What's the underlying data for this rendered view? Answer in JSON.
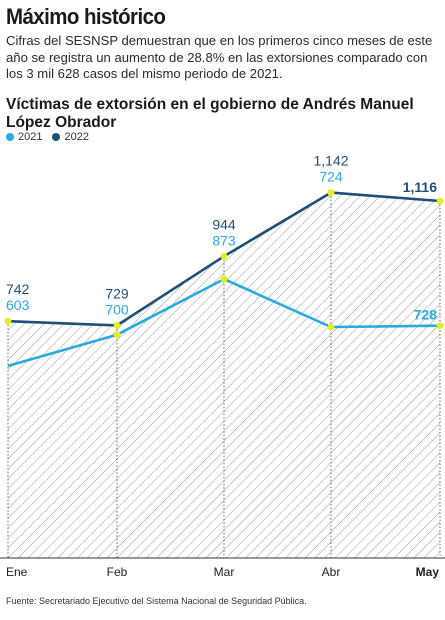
{
  "headline": "Máximo histórico",
  "lead": "Cifras del SESNSP demuestran que en los primeros cinco meses de este año se registra un aumento de 28.8% en las extorsiones comparado con los 3 mil 628 casos del mismo periodo de 2021.",
  "source": "Fuente: Secretariado Ejecutivo del Sistema Nacional de Seguridad Pública.",
  "colors": {
    "series_2021": "#29ABE2",
    "series_2022": "#1F4E79",
    "marker": "#E5F019",
    "area_hatch": "#9A9A9A"
  },
  "chart_data": {
    "type": "line",
    "title": "Víctimas de extorsión en el gobierno de Andrés Manuel López Obrador",
    "categories": [
      "Ene",
      "Feb",
      "Mar",
      "Abr",
      "May"
    ],
    "series": [
      {
        "name": "2021",
        "values": [
          603,
          700,
          873,
          724,
          728
        ]
      },
      {
        "name": "2022",
        "values": [
          742,
          729,
          944,
          1142,
          1116
        ]
      }
    ],
    "labels_2021": [
      "603",
      "700",
      "873",
      "724",
      "728"
    ],
    "labels_2022": [
      "742",
      "729",
      "944",
      "1,142",
      "1,116"
    ],
    "ylim": [
      500,
      1200
    ],
    "grid": false,
    "legend_position": "top-left",
    "xlabel": "",
    "ylabel": ""
  }
}
